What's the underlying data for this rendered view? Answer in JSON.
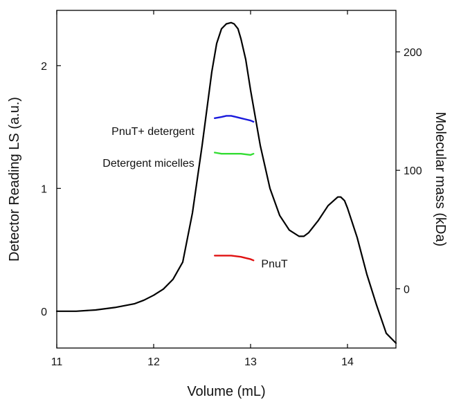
{
  "chart_data": {
    "type": "line",
    "title": "",
    "xlabel": "Volume (mL)",
    "ylabel": "Detector Reading LS (a.u.)",
    "y2label": "Molecular mass (kDa)",
    "xlim": [
      11,
      14.5
    ],
    "ylim": [
      -0.3,
      2.45
    ],
    "y2lim": [
      -50,
      235
    ],
    "x_ticks": [
      11,
      12,
      13,
      14
    ],
    "y_ticks": [
      0,
      1,
      2
    ],
    "y2_ticks": [
      0,
      100,
      200
    ],
    "grid": false,
    "series": [
      {
        "axis": "left",
        "color": "#000000",
        "x": [
          11.0,
          11.2,
          11.4,
          11.6,
          11.8,
          11.9,
          12.0,
          12.1,
          12.2,
          12.3,
          12.4,
          12.5,
          12.6,
          12.65,
          12.7,
          12.75,
          12.8,
          12.83,
          12.87,
          12.9,
          12.95,
          13.0,
          13.1,
          13.2,
          13.3,
          13.4,
          13.5,
          13.55,
          13.6,
          13.7,
          13.8,
          13.9,
          13.93,
          13.97,
          14.0,
          14.1,
          14.2,
          14.3,
          14.4,
          14.5
        ],
        "values": [
          0.0,
          0.0,
          0.01,
          0.03,
          0.06,
          0.09,
          0.13,
          0.18,
          0.26,
          0.4,
          0.8,
          1.35,
          1.95,
          2.18,
          2.3,
          2.34,
          2.35,
          2.34,
          2.3,
          2.22,
          2.05,
          1.8,
          1.35,
          1.0,
          0.78,
          0.66,
          0.61,
          0.61,
          0.64,
          0.74,
          0.86,
          0.93,
          0.93,
          0.9,
          0.84,
          0.6,
          0.3,
          0.05,
          -0.18,
          -0.26
        ]
      },
      {
        "name": "PnuT+ detergent",
        "axis": "right",
        "color": "#1a1adc",
        "x": [
          12.63,
          12.7,
          12.75,
          12.8,
          12.85,
          12.9,
          12.95,
          13.0,
          13.03
        ],
        "values": [
          144,
          145,
          146,
          146,
          145,
          144,
          143,
          142,
          141
        ]
      },
      {
        "name": "Detergent micelles",
        "axis": "right",
        "color": "#33dd33",
        "x": [
          12.63,
          12.7,
          12.8,
          12.9,
          13.0,
          13.03
        ],
        "values": [
          115,
          114,
          114,
          114,
          113,
          114
        ]
      },
      {
        "name": "PnuT",
        "axis": "right",
        "color": "#e01010",
        "x": [
          12.63,
          12.7,
          12.8,
          12.9,
          12.95,
          13.0,
          13.03
        ],
        "values": [
          28,
          28,
          28,
          27,
          26,
          25,
          24
        ]
      }
    ],
    "annotations": [
      {
        "text": "PnuT+ detergent",
        "x": 12.42,
        "y": 1.47,
        "anchor": "end"
      },
      {
        "text": "Detergent micelles",
        "x": 12.42,
        "y": 1.21,
        "anchor": "end"
      },
      {
        "text": "PnuT",
        "x": 13.11,
        "y": 0.39,
        "anchor": "start"
      }
    ]
  }
}
